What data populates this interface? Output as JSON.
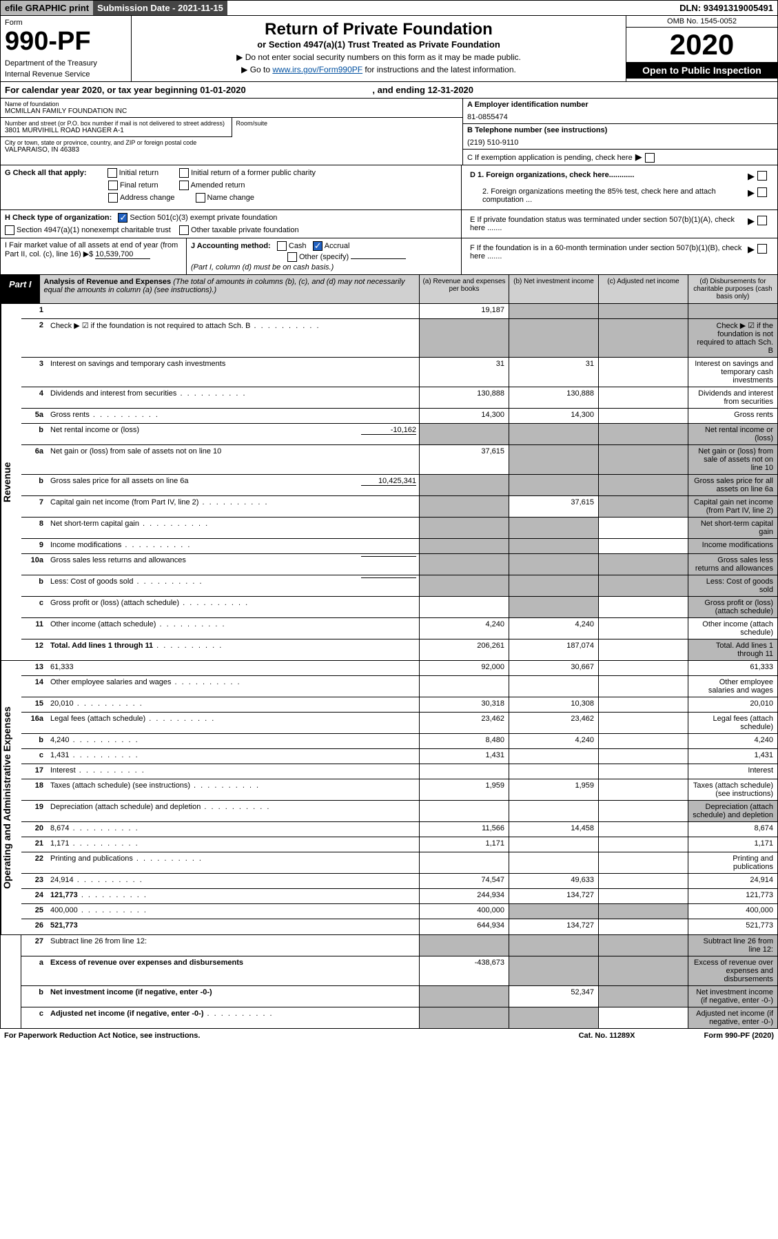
{
  "topbar": {
    "efile": "efile GRAPHIC print",
    "subdate_label": "Submission Date - ",
    "subdate": "2021-11-15",
    "dln_label": "DLN: ",
    "dln": "93491319005491"
  },
  "header": {
    "form_label": "Form",
    "form_no": "990-PF",
    "dept": "Department of the Treasury",
    "irs": "Internal Revenue Service",
    "title": "Return of Private Foundation",
    "subtitle": "or Section 4947(a)(1) Trust Treated as Private Foundation",
    "instr1": "▶ Do not enter social security numbers on this form as it may be made public.",
    "instr2_pre": "▶ Go to ",
    "instr2_link": "www.irs.gov/Form990PF",
    "instr2_post": " for instructions and the latest information.",
    "omb": "OMB No. 1545-0052",
    "year": "2020",
    "openpub": "Open to Public Inspection"
  },
  "calyear": {
    "text_pre": "For calendar year 2020, or tax year beginning ",
    "begin": "01-01-2020",
    "text_mid": " , and ending ",
    "end": "12-31-2020"
  },
  "info": {
    "name_lbl": "Name of foundation",
    "name": "MCMILLAN FAMILY FOUNDATION INC",
    "addr_lbl": "Number and street (or P.O. box number if mail is not delivered to street address)",
    "addr": "3801 MURVIHILL ROAD HANGER A-1",
    "room_lbl": "Room/suite",
    "city_lbl": "City or town, state or province, country, and ZIP or foreign postal code",
    "city": "VALPARAISO, IN  46383",
    "ein_lbl": "A Employer identification number",
    "ein": "81-0855474",
    "tel_lbl": "B Telephone number (see instructions)",
    "tel": "(219) 510-9110",
    "c_lbl": "C If exemption application is pending, check here",
    "d1": "D 1. Foreign organizations, check here............",
    "d2": "2. Foreign organizations meeting the 85% test, check here and attach computation ...",
    "e_lbl": "E  If private foundation status was terminated under section 507(b)(1)(A), check here .......",
    "f_lbl": "F  If the foundation is in a 60-month termination under section 507(b)(1)(B), check here .......",
    "g_lbl": "G Check all that apply:",
    "g_initial": "Initial return",
    "g_initial_pub": "Initial return of a former public charity",
    "g_final": "Final return",
    "g_amended": "Amended return",
    "g_addrchg": "Address change",
    "g_namechg": "Name change",
    "h_lbl": "H Check type of organization:",
    "h_501c3": "Section 501(c)(3) exempt private foundation",
    "h_4947": "Section 4947(a)(1) nonexempt charitable trust",
    "h_other": "Other taxable private foundation",
    "i_lbl": "I Fair market value of all assets at end of year (from Part II, col. (c), line 16) ▶$ ",
    "i_val": "10,539,700",
    "j_lbl": "J Accounting method:",
    "j_cash": "Cash",
    "j_accrual": "Accrual",
    "j_other": "Other (specify)",
    "j_note": "(Part I, column (d) must be on cash basis.)"
  },
  "part1": {
    "label": "Part I",
    "title": "Analysis of Revenue and Expenses",
    "note": " (The total of amounts in columns (b), (c), and (d) may not necessarily equal the amounts in column (a) (see instructions).)",
    "col_a": "(a)   Revenue and expenses per books",
    "col_b": "(b)   Net investment income",
    "col_c": "(c)   Adjusted net income",
    "col_d": "(d)   Disbursements for charitable purposes (cash basis only)"
  },
  "sections": {
    "revenue": "Revenue",
    "opex": "Operating and Administrative Expenses"
  },
  "rows": [
    {
      "n": "1",
      "d": "",
      "a": "19,187",
      "b": "",
      "c": "",
      "gray_b": true,
      "gray_c": true,
      "gray_d": true
    },
    {
      "n": "2",
      "d": "Check ▶ ☑ if the foundation is not required to attach Sch. B",
      "dots": true,
      "gray_all": true
    },
    {
      "n": "3",
      "d": "Interest on savings and temporary cash investments",
      "a": "31",
      "b": "31"
    },
    {
      "n": "4",
      "d": "Dividends and interest from securities",
      "dots": true,
      "a": "130,888",
      "b": "130,888"
    },
    {
      "n": "5a",
      "d": "Gross rents",
      "dots": true,
      "a": "14,300",
      "b": "14,300"
    },
    {
      "n": "b",
      "d": "Net rental income or (loss)",
      "inline": "-10,162",
      "gray_all": true
    },
    {
      "n": "6a",
      "d": "Net gain or (loss) from sale of assets not on line 10",
      "a": "37,615",
      "gray_bcd": true
    },
    {
      "n": "b",
      "d": "Gross sales price for all assets on line 6a",
      "inline": "10,425,341",
      "gray_all": true
    },
    {
      "n": "7",
      "d": "Capital gain net income (from Part IV, line 2)",
      "dots": true,
      "b": "37,615",
      "gray_a": true,
      "gray_cd": true
    },
    {
      "n": "8",
      "d": "Net short-term capital gain",
      "dots": true,
      "gray_ab": true,
      "gray_d": true
    },
    {
      "n": "9",
      "d": "Income modifications",
      "dots": true,
      "gray_ab": true,
      "gray_d": true
    },
    {
      "n": "10a",
      "d": "Gross sales less returns and allowances",
      "inline": "",
      "gray_all": true
    },
    {
      "n": "b",
      "d": "Less: Cost of goods sold",
      "dots": true,
      "inline": "",
      "gray_all": true
    },
    {
      "n": "c",
      "d": "Gross profit or (loss) (attach schedule)",
      "dots": true,
      "gray_b": true,
      "gray_d": true
    },
    {
      "n": "11",
      "d": "Other income (attach schedule)",
      "dots": true,
      "a": "4,240",
      "b": "4,240"
    },
    {
      "n": "12",
      "d": "Total. Add lines 1 through 11",
      "dots": true,
      "bold": true,
      "a": "206,261",
      "b": "187,074",
      "gray_d": true
    }
  ],
  "oprows": [
    {
      "n": "13",
      "d": "61,333",
      "a": "92,000",
      "b": "30,667"
    },
    {
      "n": "14",
      "d": "Other employee salaries and wages",
      "dots": true
    },
    {
      "n": "15",
      "d": "20,010",
      "dots": true,
      "a": "30,318",
      "b": "10,308"
    },
    {
      "n": "16a",
      "d": "Legal fees (attach schedule)",
      "dots": true,
      "a": "23,462",
      "b": "23,462"
    },
    {
      "n": "b",
      "d": "4,240",
      "dots": true,
      "a": "8,480",
      "b": "4,240"
    },
    {
      "n": "c",
      "d": "1,431",
      "dots": true,
      "a": "1,431"
    },
    {
      "n": "17",
      "d": "Interest",
      "dots": true
    },
    {
      "n": "18",
      "d": "Taxes (attach schedule) (see instructions)",
      "dots": true,
      "a": "1,959",
      "b": "1,959"
    },
    {
      "n": "19",
      "d": "Depreciation (attach schedule) and depletion",
      "dots": true,
      "gray_d": true
    },
    {
      "n": "20",
      "d": "8,674",
      "dots": true,
      "a": "11,566",
      "b": "14,458"
    },
    {
      "n": "21",
      "d": "1,171",
      "dots": true,
      "a": "1,171"
    },
    {
      "n": "22",
      "d": "Printing and publications",
      "dots": true
    },
    {
      "n": "23",
      "d": "24,914",
      "dots": true,
      "a": "74,547",
      "b": "49,633"
    },
    {
      "n": "24",
      "d": "121,773",
      "dots": true,
      "bold": true,
      "a": "244,934",
      "b": "134,727"
    },
    {
      "n": "25",
      "d": "400,000",
      "dots": true,
      "a": "400,000",
      "gray_bc": true
    },
    {
      "n": "26",
      "d": "521,773",
      "bold": true,
      "a": "644,934",
      "b": "134,727"
    }
  ],
  "finalrows": [
    {
      "n": "27",
      "d": "Subtract line 26 from line 12:",
      "gray_all": true
    },
    {
      "n": "a",
      "d": "Excess of revenue over expenses and disbursements",
      "bold": true,
      "a": "-438,673",
      "gray_bcd": true
    },
    {
      "n": "b",
      "d": "Net investment income (if negative, enter -0-)",
      "bold": true,
      "b": "52,347",
      "gray_a": true,
      "gray_cd": true
    },
    {
      "n": "c",
      "d": "Adjusted net income (if negative, enter -0-)",
      "bold": true,
      "dots": true,
      "gray_ab": true,
      "gray_d": true
    }
  ],
  "footer": {
    "left": "For Paperwork Reduction Act Notice, see instructions.",
    "mid": "Cat. No. 11289X",
    "right": "Form 990-PF (2020)"
  }
}
